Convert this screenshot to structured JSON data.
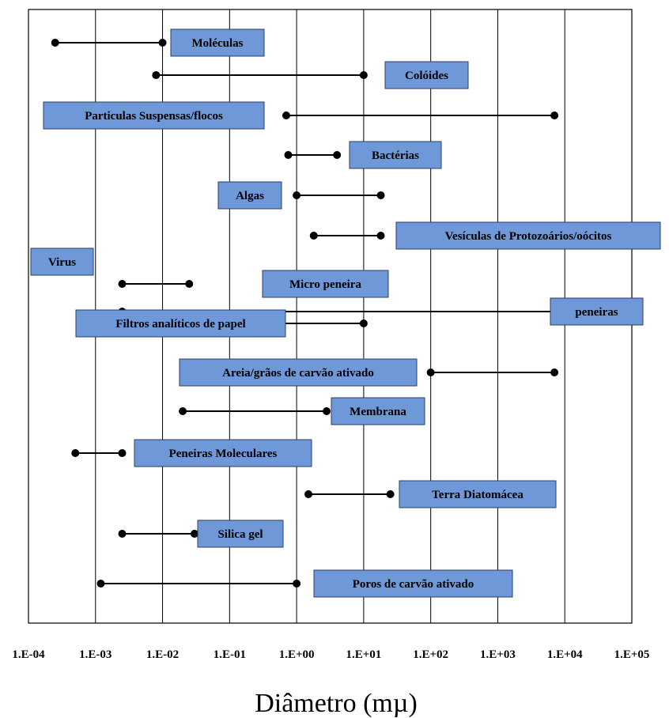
{
  "chart_data": {
    "type": "range",
    "xscale": "log",
    "xlim": [
      "1.E-04",
      "1.E+05"
    ],
    "x_tick_labels": [
      "1.E-04",
      "1.E-03",
      "1.E-02",
      "1.E-01",
      "1.E+00",
      "1.E+01",
      "1.E+02",
      "1.E+03",
      "1.E+04",
      "1.E+05"
    ],
    "xlabel": "Diâmetro (mµ)",
    "grid": "vertical",
    "box_color": "#6f98d8",
    "items": [
      {
        "label": "Moléculas",
        "range": [
          0.00025,
          0.01
        ]
      },
      {
        "label": "Colóides",
        "range": [
          0.008,
          10
        ]
      },
      {
        "label": "Particulas Suspensas/flocos",
        "range": [
          0.7,
          7000
        ]
      },
      {
        "label": "Bactérias",
        "range": [
          0.75,
          4
        ]
      },
      {
        "label": "Algas",
        "range": [
          1,
          18
        ]
      },
      {
        "label": "Vesículas de Protozoários/oócitos",
        "range": [
          1.8,
          18
        ]
      },
      {
        "label": "Virus",
        "range": null
      },
      {
        "label": "Micro peneira",
        "range": [
          0.0025,
          0.025
        ]
      },
      {
        "label": "peneiras",
        "range": [
          0.0025,
          8000
        ]
      },
      {
        "label": "Filtros analíticos de papel",
        "range": [
          null,
          10
        ]
      },
      {
        "label": "Areia/grãos de carvão ativado",
        "range": [
          100,
          7000
        ]
      },
      {
        "label": "Membrana",
        "range": [
          0.02,
          2.8
        ]
      },
      {
        "label": "Peneiras Moleculares",
        "range": [
          0.0005,
          0.0025
        ]
      },
      {
        "label": "Terra Diatomácea",
        "range": [
          1.5,
          25
        ]
      },
      {
        "label": "Silica gel",
        "range": [
          0.0025,
          0.03
        ]
      },
      {
        "label": "Poros de carvão ativado",
        "range": [
          0.0012,
          1
        ]
      }
    ]
  }
}
